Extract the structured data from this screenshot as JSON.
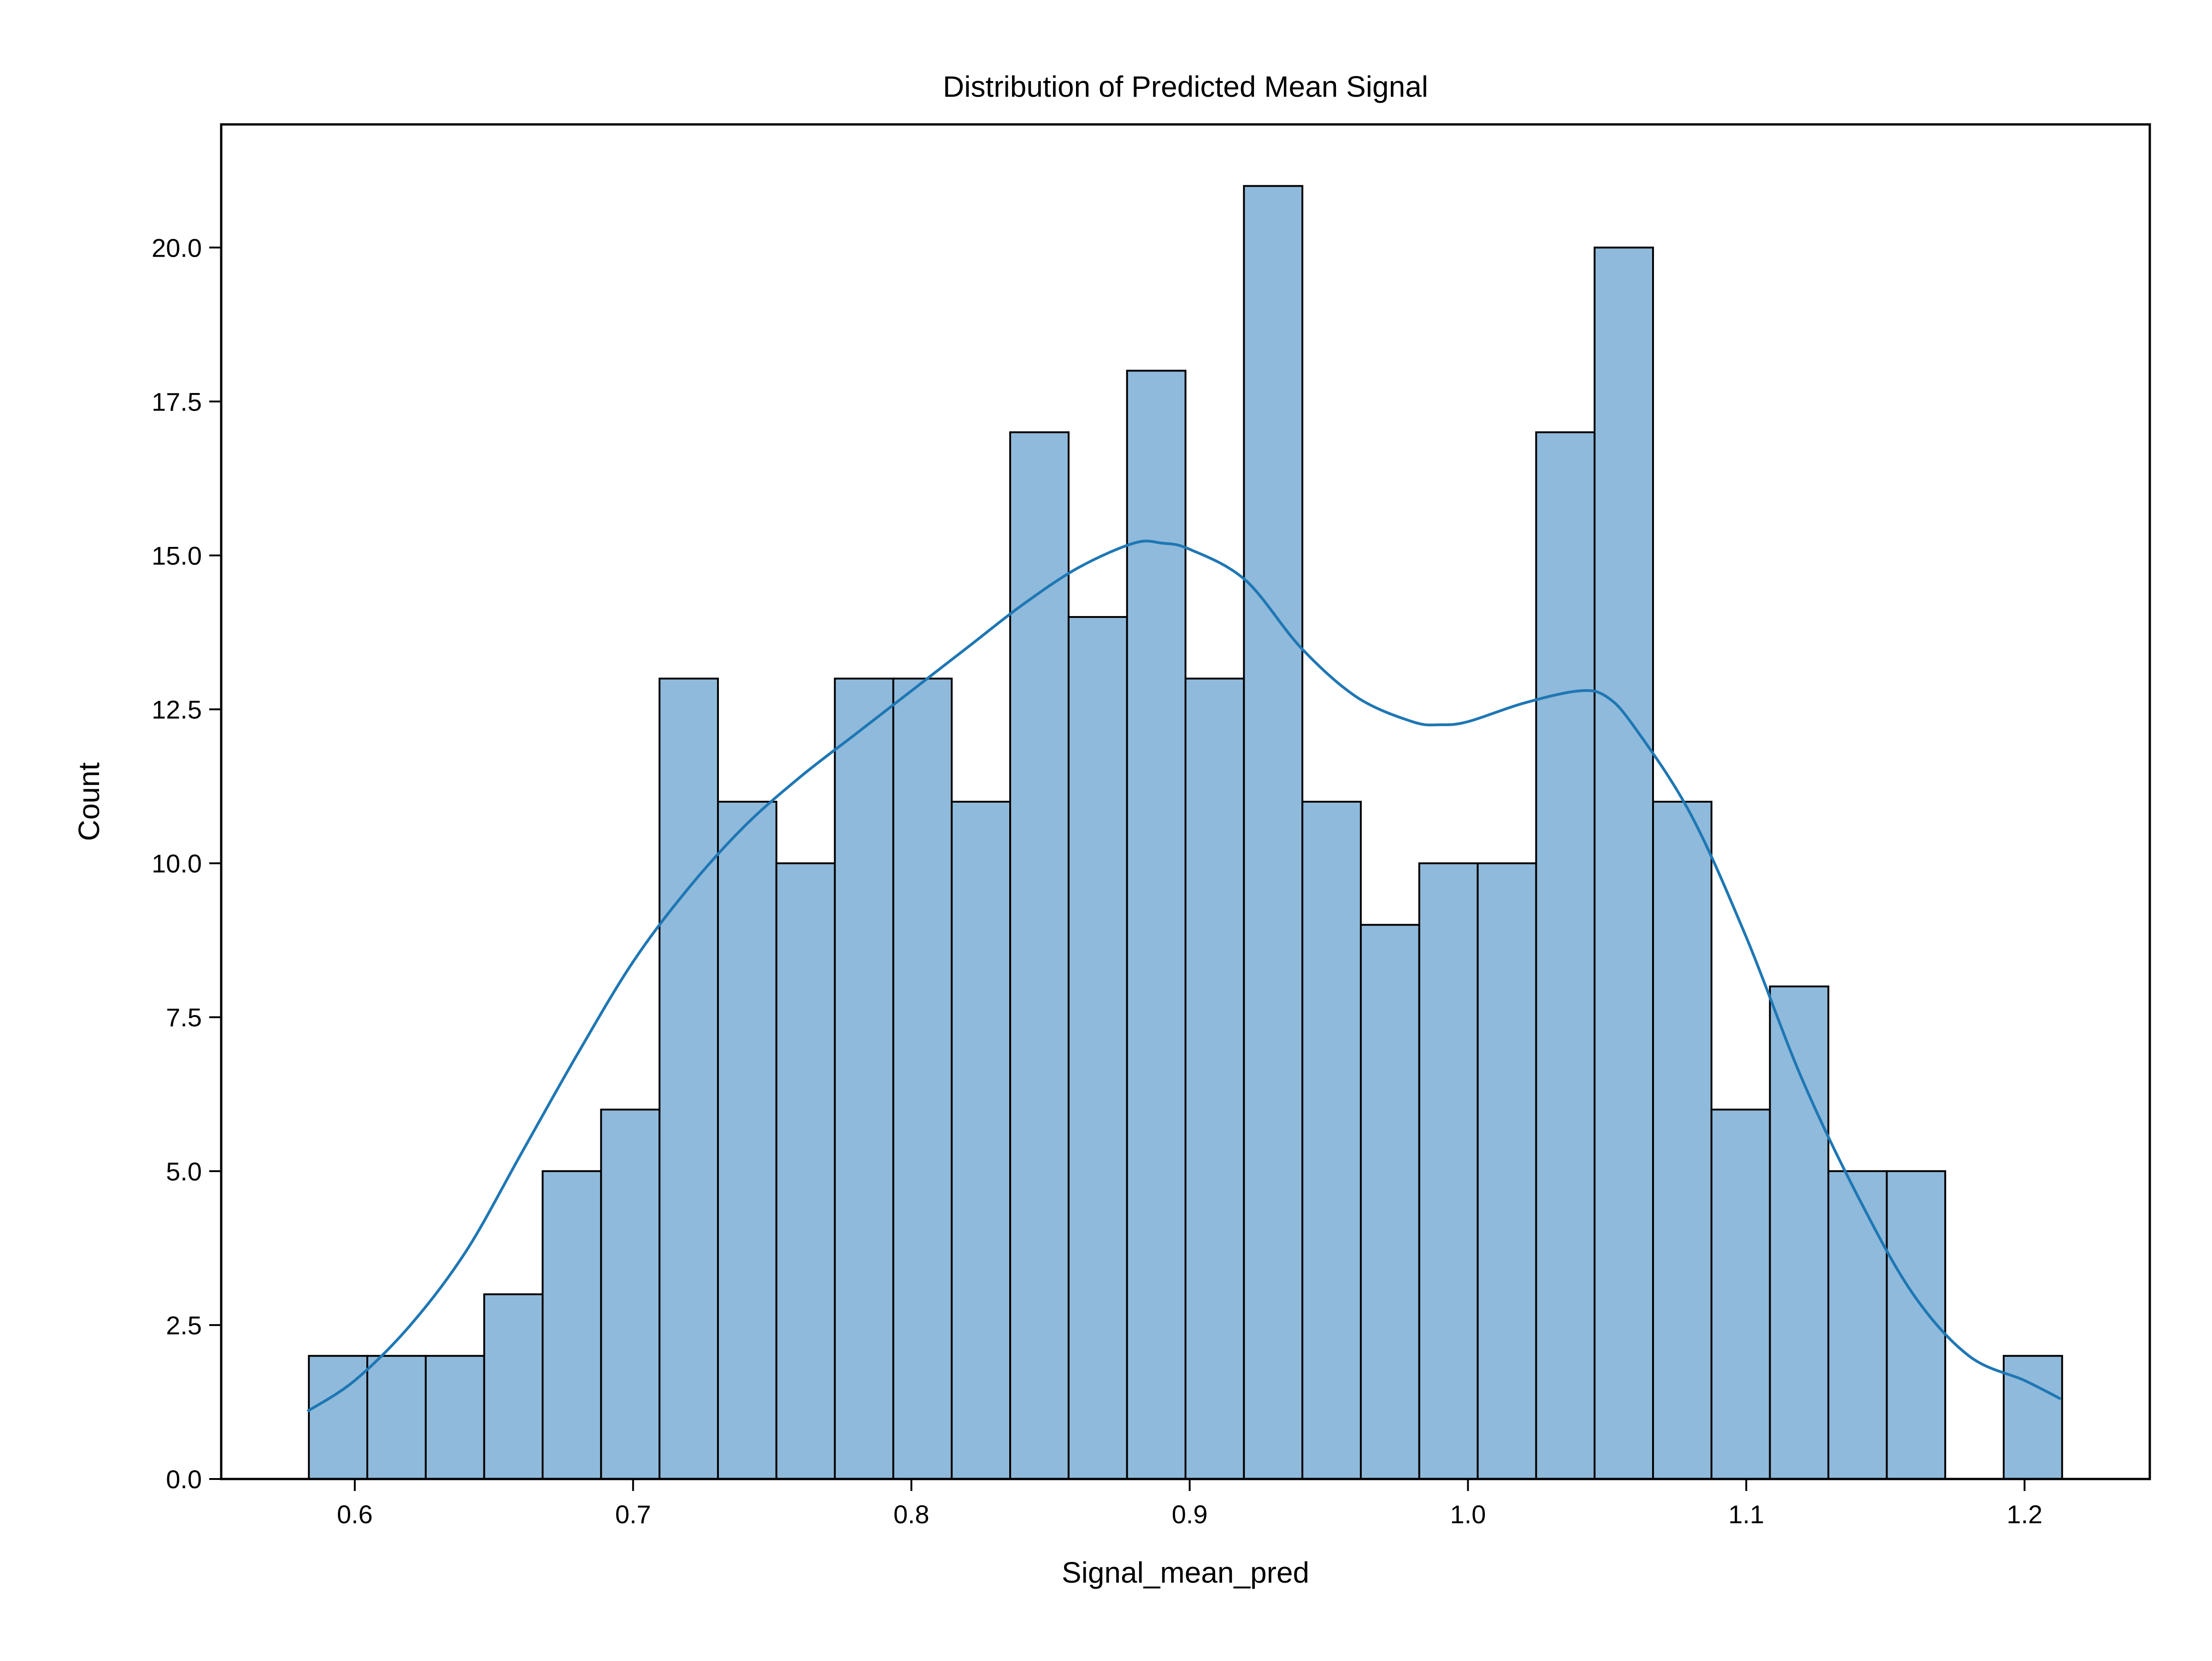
{
  "chart_data": {
    "type": "bar",
    "title": "Distribution of Predicted Mean Signal",
    "xlabel": "Signal_mean_pred",
    "ylabel": "Count",
    "xlim": [
      0.552,
      1.245
    ],
    "ylim": [
      0,
      22
    ],
    "x_ticks": [
      0.6,
      0.7,
      0.8,
      0.9,
      1.0,
      1.1,
      1.2
    ],
    "x_tick_labels": [
      "0.6",
      "0.7",
      "0.8",
      "0.9",
      "1.0",
      "1.1",
      "1.2"
    ],
    "y_ticks": [
      0,
      2.5,
      5,
      7.5,
      10,
      12.5,
      15,
      17.5,
      20
    ],
    "y_tick_labels": [
      "0.0",
      "2.5",
      "5.0",
      "7.5",
      "10.0",
      "12.5",
      "15.0",
      "17.5",
      "20.0"
    ],
    "bin_start": 0.5835,
    "bin_width": 0.021,
    "counts": [
      2,
      2,
      2,
      3,
      5,
      6,
      13,
      11,
      10,
      13,
      13,
      11,
      17,
      14,
      18,
      13,
      21,
      11,
      9,
      10,
      10,
      17,
      20,
      11,
      6,
      8,
      5,
      5,
      0,
      2
    ],
    "kde": {
      "x": [
        0.583,
        0.6,
        0.62,
        0.64,
        0.66,
        0.68,
        0.7,
        0.72,
        0.74,
        0.76,
        0.78,
        0.8,
        0.82,
        0.84,
        0.86,
        0.88,
        0.89,
        0.9,
        0.92,
        0.94,
        0.96,
        0.98,
        0.99,
        1.0,
        1.02,
        1.04,
        1.05,
        1.06,
        1.08,
        1.1,
        1.12,
        1.14,
        1.16,
        1.18,
        1.2,
        1.213
      ],
      "y": [
        1.1,
        1.6,
        2.5,
        3.7,
        5.3,
        6.9,
        8.4,
        9.6,
        10.6,
        11.4,
        12.1,
        12.8,
        13.5,
        14.2,
        14.8,
        15.2,
        15.2,
        15.1,
        14.6,
        13.5,
        12.7,
        12.3,
        12.25,
        12.3,
        12.6,
        12.8,
        12.7,
        12.2,
        10.8,
        8.8,
        6.5,
        4.6,
        3.0,
        2.0,
        1.6,
        1.3
      ]
    },
    "grid": false,
    "bar_fill": "#8fbadb",
    "bar_edge": "#000000",
    "line_color": "#1f77b4"
  }
}
